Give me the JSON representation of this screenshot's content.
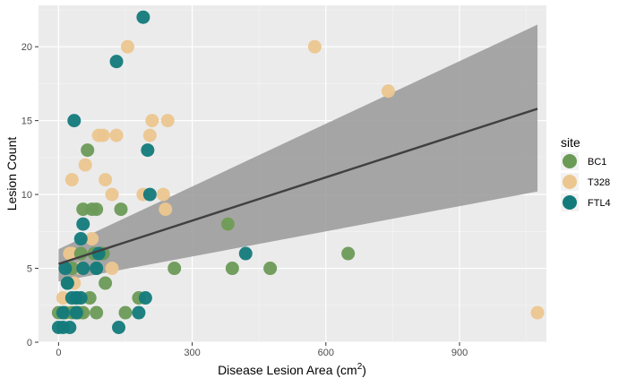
{
  "chart_data": {
    "type": "scatter",
    "xlabel": "Disease Lesion Area (cm",
    "xlabel_superscript": "2",
    "xlabel_suffix": ")",
    "ylabel": "Lesion Count",
    "xlim": [
      -45,
      1095
    ],
    "ylim": [
      0,
      22.8
    ],
    "x_ticks": [
      0,
      300,
      600,
      900
    ],
    "x_tick_labels": [
      "0",
      "300",
      "600",
      "900"
    ],
    "y_ticks": [
      0,
      5,
      10,
      15,
      20
    ],
    "y_tick_labels": [
      "0",
      "5",
      "10",
      "15",
      "20"
    ],
    "grid": true,
    "legend": {
      "title": "site",
      "position": "right",
      "entries": [
        {
          "name": "BC1",
          "color": "#6b9a57"
        },
        {
          "name": "T328",
          "color": "#ecc68f"
        },
        {
          "name": "FTL4",
          "color": "#137a7b"
        }
      ]
    },
    "trend": {
      "type": "linear",
      "x": [
        0,
        1075
      ],
      "y": [
        5.3,
        15.8
      ],
      "ci_lower": [
        4.1,
        10.2
      ],
      "ci_upper": [
        6.3,
        21.5
      ],
      "line_color": "#404040",
      "band_color": "#999999"
    },
    "series": [
      {
        "name": "T328",
        "color": "#ecc68f",
        "points": [
          [
            155,
            20
          ],
          [
            575,
            20
          ],
          [
            740,
            17
          ],
          [
            100,
            14
          ],
          [
            90,
            14
          ],
          [
            130,
            14
          ],
          [
            205,
            14
          ],
          [
            210,
            15
          ],
          [
            245,
            15
          ],
          [
            60,
            12
          ],
          [
            30,
            11
          ],
          [
            105,
            11
          ],
          [
            120,
            10
          ],
          [
            190,
            10
          ],
          [
            235,
            10
          ],
          [
            240,
            9
          ],
          [
            380,
            8
          ],
          [
            75,
            7
          ],
          [
            25,
            6
          ],
          [
            30,
            6
          ],
          [
            95,
            6
          ],
          [
            120,
            5
          ],
          [
            50,
            5
          ],
          [
            35,
            4
          ],
          [
            10,
            3
          ],
          [
            45,
            3
          ],
          [
            35,
            2
          ],
          [
            1075,
            2
          ]
        ]
      },
      {
        "name": "BC1",
        "color": "#6b9a57",
        "points": [
          [
            65,
            13
          ],
          [
            55,
            9
          ],
          [
            75,
            9
          ],
          [
            85,
            9
          ],
          [
            140,
            9
          ],
          [
            380,
            8
          ],
          [
            50,
            6
          ],
          [
            80,
            6
          ],
          [
            95,
            6
          ],
          [
            100,
            6
          ],
          [
            650,
            6
          ],
          [
            30,
            5
          ],
          [
            85,
            5
          ],
          [
            260,
            5
          ],
          [
            390,
            5
          ],
          [
            475,
            5
          ],
          [
            20,
            4
          ],
          [
            105,
            4
          ],
          [
            40,
            3
          ],
          [
            70,
            3
          ],
          [
            180,
            3
          ],
          [
            0,
            2
          ],
          [
            15,
            2
          ],
          [
            30,
            2
          ],
          [
            45,
            2
          ],
          [
            55,
            2
          ],
          [
            85,
            2
          ],
          [
            150,
            2
          ]
        ]
      },
      {
        "name": "FTL4",
        "color": "#137a7b",
        "points": [
          [
            190,
            22
          ],
          [
            130,
            19
          ],
          [
            35,
            15
          ],
          [
            200,
            13
          ],
          [
            205,
            10
          ],
          [
            55,
            8
          ],
          [
            50,
            7
          ],
          [
            15,
            5
          ],
          [
            55,
            5
          ],
          [
            85,
            5
          ],
          [
            420,
            6
          ],
          [
            20,
            4
          ],
          [
            30,
            3
          ],
          [
            40,
            3
          ],
          [
            50,
            3
          ],
          [
            195,
            3
          ],
          [
            10,
            2
          ],
          [
            40,
            2
          ],
          [
            180,
            2
          ],
          [
            0,
            1
          ],
          [
            10,
            1
          ],
          [
            25,
            1
          ],
          [
            135,
            1
          ],
          [
            90,
            6
          ]
        ]
      }
    ]
  }
}
